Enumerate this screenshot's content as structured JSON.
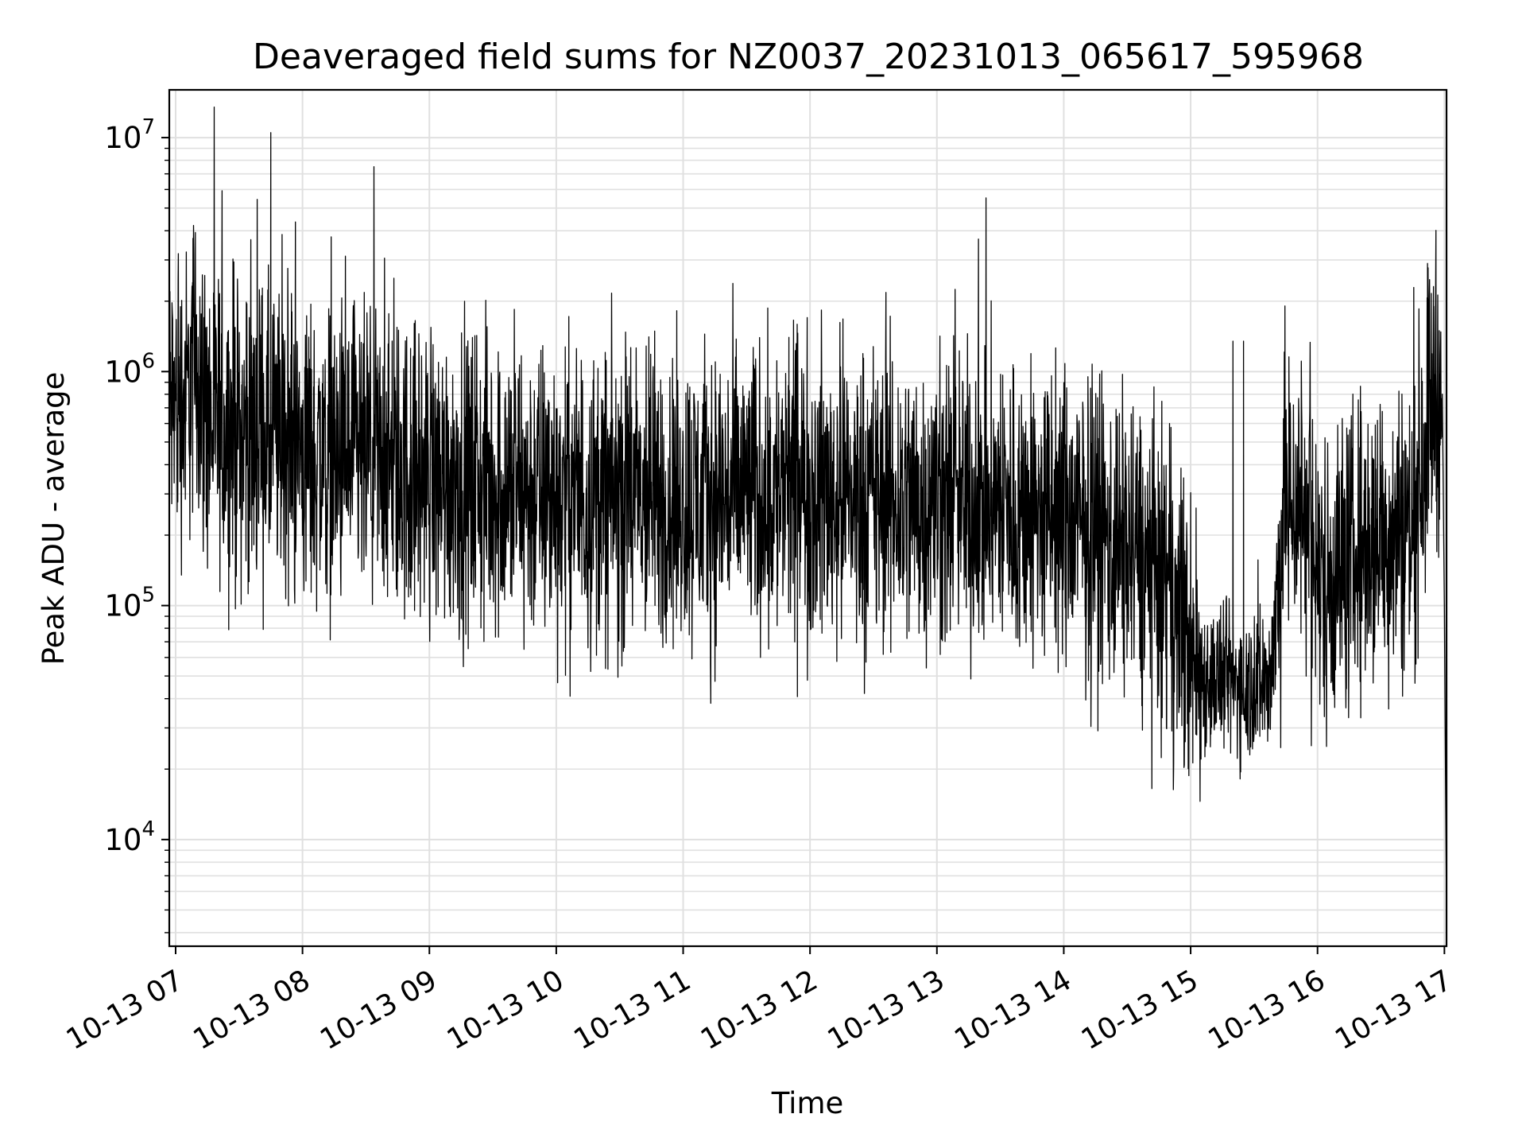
{
  "chart_data": {
    "type": "line",
    "title": "Deaveraged field sums for NZ0037_20231013_065617_595968",
    "xlabel": "Time",
    "ylabel": "Peak ADU - average",
    "yscale": "log",
    "ylim": [
      3500,
      16000000
    ],
    "xlim": [
      "2023-10-13 06:57",
      "2023-10-13 17:01"
    ],
    "grid": true,
    "line_color": "#000000",
    "grid_color": "#e0e0e0",
    "x_ticks": [
      {
        "value": "2023-10-13 07:00",
        "label": "10-13 07"
      },
      {
        "value": "2023-10-13 08:00",
        "label": "10-13 08"
      },
      {
        "value": "2023-10-13 09:00",
        "label": "10-13 09"
      },
      {
        "value": "2023-10-13 10:00",
        "label": "10-13 10"
      },
      {
        "value": "2023-10-13 11:00",
        "label": "10-13 11"
      },
      {
        "value": "2023-10-13 12:00",
        "label": "10-13 12"
      },
      {
        "value": "2023-10-13 13:00",
        "label": "10-13 13"
      },
      {
        "value": "2023-10-13 14:00",
        "label": "10-13 14"
      },
      {
        "value": "2023-10-13 15:00",
        "label": "10-13 15"
      },
      {
        "value": "2023-10-13 16:00",
        "label": "10-13 16"
      },
      {
        "value": "2023-10-13 17:00",
        "label": "10-13 17"
      }
    ],
    "y_ticks": [
      {
        "value": 10000,
        "base": "10",
        "exp": "4"
      },
      {
        "value": 100000,
        "base": "10",
        "exp": "5"
      },
      {
        "value": 1000000,
        "base": "10",
        "exp": "6"
      },
      {
        "value": 10000000,
        "base": "10",
        "exp": "7"
      }
    ],
    "series": [
      {
        "trend": [
          [
            "2023-10-13 06:57",
            700000
          ],
          [
            "2023-10-13 07:05",
            750000
          ],
          [
            "2023-10-13 07:10",
            1100000
          ],
          [
            "2023-10-13 07:15",
            600000
          ],
          [
            "2023-10-13 07:30",
            550000
          ],
          [
            "2023-10-13 07:45",
            500000
          ],
          [
            "2023-10-13 08:00",
            450000
          ],
          [
            "2023-10-13 08:30",
            400000
          ],
          [
            "2023-10-13 09:00",
            350000
          ],
          [
            "2023-10-13 09:30",
            320000
          ],
          [
            "2023-10-13 10:00",
            300000
          ],
          [
            "2023-10-13 10:30",
            280000
          ],
          [
            "2023-10-13 11:00",
            280000
          ],
          [
            "2023-10-13 11:30",
            300000
          ],
          [
            "2023-10-13 12:00",
            300000
          ],
          [
            "2023-10-13 12:30",
            280000
          ],
          [
            "2023-10-13 13:00",
            280000
          ],
          [
            "2023-10-13 13:30",
            260000
          ],
          [
            "2023-10-13 14:00",
            230000
          ],
          [
            "2023-10-13 14:30",
            180000
          ],
          [
            "2023-10-13 14:50",
            110000
          ],
          [
            "2023-10-13 15:05",
            50000
          ],
          [
            "2023-10-13 15:30",
            45000
          ],
          [
            "2023-10-13 15:38",
            50000
          ],
          [
            "2023-10-13 15:45",
            300000
          ],
          [
            "2023-10-13 15:55",
            250000
          ],
          [
            "2023-10-13 16:00",
            120000
          ],
          [
            "2023-10-13 16:15",
            160000
          ],
          [
            "2023-10-13 16:30",
            200000
          ],
          [
            "2023-10-13 16:45",
            220000
          ],
          [
            "2023-10-13 16:53",
            700000
          ],
          [
            "2023-10-13 16:58",
            900000
          ],
          [
            "2023-10-13 17:00",
            200000
          ],
          [
            "2023-10-13 17:01",
            15000
          ]
        ],
        "spikes": [
          [
            "2023-10-13 07:08",
            2400000
          ],
          [
            "2023-10-13 07:45",
            10500000
          ],
          [
            "2023-10-13 07:55",
            1800000
          ],
          [
            "2023-10-13 08:55",
            1450000
          ],
          [
            "2023-10-13 11:50",
            1400000
          ],
          [
            "2023-10-13 14:50",
            600000
          ],
          [
            "2023-10-13 15:20",
            1350000
          ],
          [
            "2023-10-13 15:25",
            1350000
          ],
          [
            "2023-10-13 16:52",
            2900000
          ],
          [
            "2023-10-13 16:55",
            1900000
          ]
        ],
        "final_values": [
          [
            "2023-10-13 16:59",
            800000
          ],
          [
            "2023-10-13 17:00",
            100000
          ],
          [
            "2023-10-13 17:00:30",
            19000
          ],
          [
            "2023-10-13 17:01",
            4800
          ]
        ]
      }
    ]
  }
}
